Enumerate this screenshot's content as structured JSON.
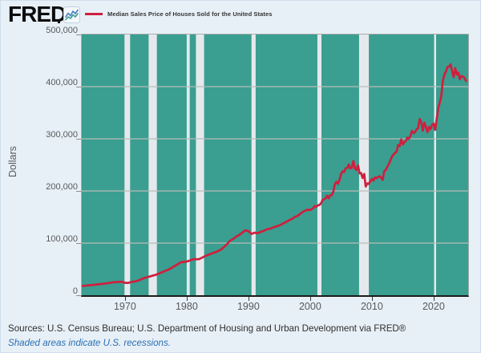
{
  "header": {
    "logo_text": "FRED",
    "legend_label": "Median Sales Price of Houses Sold for the United States"
  },
  "footer": {
    "sources": "Sources: U.S. Census Bureau; U.S. Department of Housing and Urban Development via FRED®",
    "recession_note": "Shaded areas indicate U.S. recessions."
  },
  "chart_data": {
    "type": "line",
    "title": "Median Sales Price of Houses Sold for the United States",
    "ylabel": "Dollars",
    "xlabel": "",
    "ylim": [
      0,
      500000
    ],
    "xlim": [
      1963,
      2025.6
    ],
    "grid": "horizontal",
    "legend_position": "top-left",
    "yticks": [
      {
        "value": 0,
        "label": "0"
      },
      {
        "value": 100000,
        "label": "100,000"
      },
      {
        "value": 200000,
        "label": "200,000"
      },
      {
        "value": 300000,
        "label": "300,000"
      },
      {
        "value": 400000,
        "label": "400,000"
      },
      {
        "value": 500000,
        "label": "500,000"
      }
    ],
    "xticks": [
      {
        "value": 1970,
        "label": "1970"
      },
      {
        "value": 1980,
        "label": "1980"
      },
      {
        "value": 1990,
        "label": "1990"
      },
      {
        "value": 2000,
        "label": "2000"
      },
      {
        "value": 2010,
        "label": "2010"
      },
      {
        "value": 2020,
        "label": "2020"
      }
    ],
    "recessions": [
      [
        1969.92,
        1970.83
      ],
      [
        1973.83,
        1975.17
      ],
      [
        1980.0,
        1980.5
      ],
      [
        1981.5,
        1982.83
      ],
      [
        1990.5,
        1991.17
      ],
      [
        2001.17,
        2001.83
      ],
      [
        2007.92,
        2009.5
      ],
      [
        2020.08,
        2020.33
      ]
    ],
    "colors": {
      "page_bg": "#e8f0f7",
      "plot_bg": "#3a9e90",
      "recession_band": "#e5e9ec",
      "gridline": "#b7bdba",
      "line": "#cf1f3e",
      "axis": "#1b1b1b"
    },
    "series": [
      {
        "name": "Median Sales Price of Houses Sold for the United States",
        "color": "#cf1f3e",
        "points": [
          [
            1963,
            17800
          ],
          [
            1963.5,
            18200
          ],
          [
            1964,
            18900
          ],
          [
            1964.5,
            19400
          ],
          [
            1965,
            20000
          ],
          [
            1965.5,
            20800
          ],
          [
            1966,
            21400
          ],
          [
            1966.5,
            22000
          ],
          [
            1967,
            22700
          ],
          [
            1967.5,
            23700
          ],
          [
            1968,
            24700
          ],
          [
            1968.5,
            25100
          ],
          [
            1969,
            25600
          ],
          [
            1969.5,
            25900
          ],
          [
            1970,
            23900
          ],
          [
            1970.5,
            23600
          ],
          [
            1971,
            25200
          ],
          [
            1971.5,
            26300
          ],
          [
            1972,
            27600
          ],
          [
            1972.5,
            29900
          ],
          [
            1973,
            32500
          ],
          [
            1973.5,
            34300
          ],
          [
            1974,
            35900
          ],
          [
            1974.5,
            37500
          ],
          [
            1975,
            39300
          ],
          [
            1975.5,
            41600
          ],
          [
            1976,
            44200
          ],
          [
            1976.5,
            46400
          ],
          [
            1977,
            48800
          ],
          [
            1977.5,
            52000
          ],
          [
            1978,
            55700
          ],
          [
            1978.5,
            59100
          ],
          [
            1979,
            62900
          ],
          [
            1979.5,
            63800
          ],
          [
            1980,
            64600
          ],
          [
            1980.5,
            66400
          ],
          [
            1981,
            68900
          ],
          [
            1981.5,
            69000
          ],
          [
            1982,
            69300
          ],
          [
            1982.5,
            72000
          ],
          [
            1983,
            75300
          ],
          [
            1983.5,
            77500
          ],
          [
            1984,
            79900
          ],
          [
            1984.5,
            82000
          ],
          [
            1985,
            84300
          ],
          [
            1985.5,
            87000
          ],
          [
            1986,
            92000
          ],
          [
            1986.5,
            97500
          ],
          [
            1987,
            104500
          ],
          [
            1987.5,
            107500
          ],
          [
            1988,
            112500
          ],
          [
            1988.5,
            115500
          ],
          [
            1989,
            120000
          ],
          [
            1989.5,
            124500
          ],
          [
            1990,
            122900
          ],
          [
            1990.5,
            117500
          ],
          [
            1991,
            120000
          ],
          [
            1991.5,
            119000
          ],
          [
            1992,
            121500
          ],
          [
            1992.5,
            123500
          ],
          [
            1993,
            126500
          ],
          [
            1993.5,
            127500
          ],
          [
            1994,
            130000
          ],
          [
            1994.5,
            131800
          ],
          [
            1995,
            133900
          ],
          [
            1995.5,
            136800
          ],
          [
            1996,
            140000
          ],
          [
            1996.5,
            143200
          ],
          [
            1997,
            146000
          ],
          [
            1997.5,
            149800
          ],
          [
            1998,
            152500
          ],
          [
            1998.5,
            157200
          ],
          [
            1999,
            161000
          ],
          [
            1999.5,
            163800
          ],
          [
            2000,
            163500
          ],
          [
            2000.25,
            165300
          ],
          [
            2000.5,
            167000
          ],
          [
            2000.75,
            171200
          ],
          [
            2001,
            169800
          ],
          [
            2001.25,
            172400
          ],
          [
            2001.5,
            172900
          ],
          [
            2001.75,
            176000
          ],
          [
            2002,
            182100
          ],
          [
            2002.25,
            184100
          ],
          [
            2002.5,
            185700
          ],
          [
            2002.75,
            190600
          ],
          [
            2003,
            186000
          ],
          [
            2003.25,
            191800
          ],
          [
            2003.5,
            191900
          ],
          [
            2003.75,
            198800
          ],
          [
            2004,
            212700
          ],
          [
            2004.25,
            217600
          ],
          [
            2004.5,
            213500
          ],
          [
            2004.75,
            221000
          ],
          [
            2005,
            232500
          ],
          [
            2005.25,
            237500
          ],
          [
            2005.5,
            236300
          ],
          [
            2005.75,
            243600
          ],
          [
            2006,
            243800
          ],
          [
            2006.25,
            250800
          ],
          [
            2006.5,
            243100
          ],
          [
            2006.75,
            244700
          ],
          [
            2007,
            257400
          ],
          [
            2007.25,
            242900
          ],
          [
            2007.5,
            240300
          ],
          [
            2007.75,
            249100
          ],
          [
            2008,
            233900
          ],
          [
            2008.25,
            234300
          ],
          [
            2008.5,
            224900
          ],
          [
            2008.75,
            232400
          ],
          [
            2009,
            208400
          ],
          [
            2009.25,
            214500
          ],
          [
            2009.5,
            213400
          ],
          [
            2009.75,
            219000
          ],
          [
            2010,
            222900
          ],
          [
            2010.25,
            219500
          ],
          [
            2010.5,
            226000
          ],
          [
            2010.75,
            224300
          ],
          [
            2011,
            226900
          ],
          [
            2011.25,
            228100
          ],
          [
            2011.5,
            225400
          ],
          [
            2011.75,
            221200
          ],
          [
            2012,
            238400
          ],
          [
            2012.25,
            240200
          ],
          [
            2012.5,
            246200
          ],
          [
            2012.75,
            251700
          ],
          [
            2013,
            258400
          ],
          [
            2013.25,
            265800
          ],
          [
            2013.5,
            269700
          ],
          [
            2013.75,
            272900
          ],
          [
            2014,
            275200
          ],
          [
            2014.25,
            288000
          ],
          [
            2014.5,
            286000
          ],
          [
            2014.75,
            298900
          ],
          [
            2015,
            289200
          ],
          [
            2015.25,
            293400
          ],
          [
            2015.5,
            295800
          ],
          [
            2015.75,
            302500
          ],
          [
            2016,
            299800
          ],
          [
            2016.25,
            306000
          ],
          [
            2016.5,
            315200
          ],
          [
            2016.75,
            310900
          ],
          [
            2017,
            313100
          ],
          [
            2017.25,
            318200
          ],
          [
            2017.5,
            320500
          ],
          [
            2017.75,
            337900
          ],
          [
            2018,
            331800
          ],
          [
            2018.25,
            315600
          ],
          [
            2018.5,
            330900
          ],
          [
            2018.75,
            322800
          ],
          [
            2019,
            313000
          ],
          [
            2019.25,
            322500
          ],
          [
            2019.5,
            318400
          ],
          [
            2019.75,
            327100
          ],
          [
            2020,
            329000
          ],
          [
            2020.25,
            317100
          ],
          [
            2020.5,
            337500
          ],
          [
            2020.75,
            358700
          ],
          [
            2021,
            369800
          ],
          [
            2021.25,
            382600
          ],
          [
            2021.5,
            411200
          ],
          [
            2021.75,
            423600
          ],
          [
            2022,
            428700
          ],
          [
            2022.25,
            437700
          ],
          [
            2022.5,
            438000
          ],
          [
            2022.75,
            442600
          ],
          [
            2023,
            429000
          ],
          [
            2023.25,
            418500
          ],
          [
            2023.5,
            435400
          ],
          [
            2023.75,
            423200
          ],
          [
            2024,
            426800
          ],
          [
            2024.25,
            414200
          ],
          [
            2024.5,
            420400
          ],
          [
            2024.75,
            419200
          ],
          [
            2025,
            416900
          ],
          [
            2025.25,
            410800
          ]
        ]
      }
    ]
  }
}
